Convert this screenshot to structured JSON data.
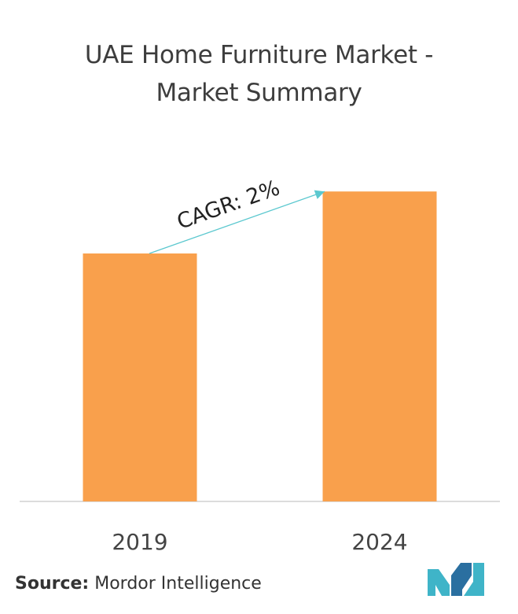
{
  "title": {
    "line1": "UAE Home Furniture Market -",
    "line2": "Market Summary"
  },
  "chart_data": {
    "type": "bar",
    "categories": [
      "2019",
      "2024"
    ],
    "values": [
      1.0,
      1.25
    ],
    "annotation": "CAGR: 2%",
    "bar_color": "#f9a04c",
    "arrow_color": "#5bc8cf"
  },
  "source": {
    "label": "Source:",
    "name": "Mordor Intelligence"
  },
  "logo": {
    "icon": "mordor-intelligence-logo",
    "colors": [
      "#3fb4c8",
      "#2a6fa0"
    ]
  }
}
